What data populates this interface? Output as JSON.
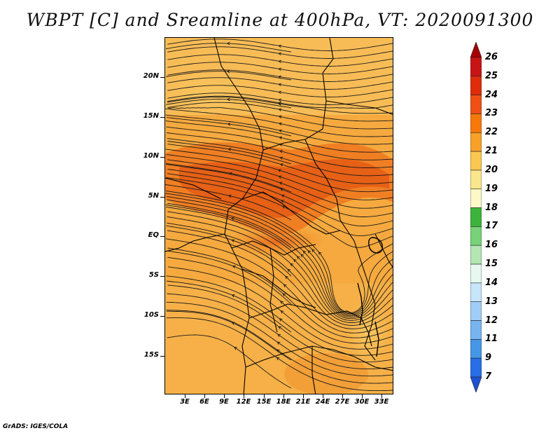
{
  "title": "WBPT [C] and Sreamline at 400hPa, VT: 2020091300",
  "footer": "GrADS: IGES/COLA",
  "lat_labels": [
    "20N",
    "15N",
    "10N",
    "5N",
    "EQ",
    "5S",
    "10S",
    "15S"
  ],
  "lon_labels": [
    "3E",
    "6E",
    "9E",
    "12E",
    "15E",
    "18E",
    "21E",
    "24E",
    "27E",
    "30E",
    "33E"
  ],
  "colorbar": {
    "labels": [
      "26",
      "25",
      "24",
      "23",
      "22",
      "21",
      "20",
      "19",
      "18",
      "17",
      "16",
      "15",
      "14",
      "13",
      "12",
      "11",
      "9",
      "7"
    ],
    "colors": [
      "#a80000",
      "#c81414",
      "#e02c0a",
      "#f05014",
      "#f8780a",
      "#f8a028",
      "#fac850",
      "#fae68c",
      "#fcf8c8",
      "#3cb43c",
      "#78d278",
      "#b4e6b4",
      "#e6f8f0",
      "#c8e6fa",
      "#a0cdf8",
      "#78b4f0",
      "#4696e6",
      "#286ee6",
      "#1e50d2"
    ]
  }
}
